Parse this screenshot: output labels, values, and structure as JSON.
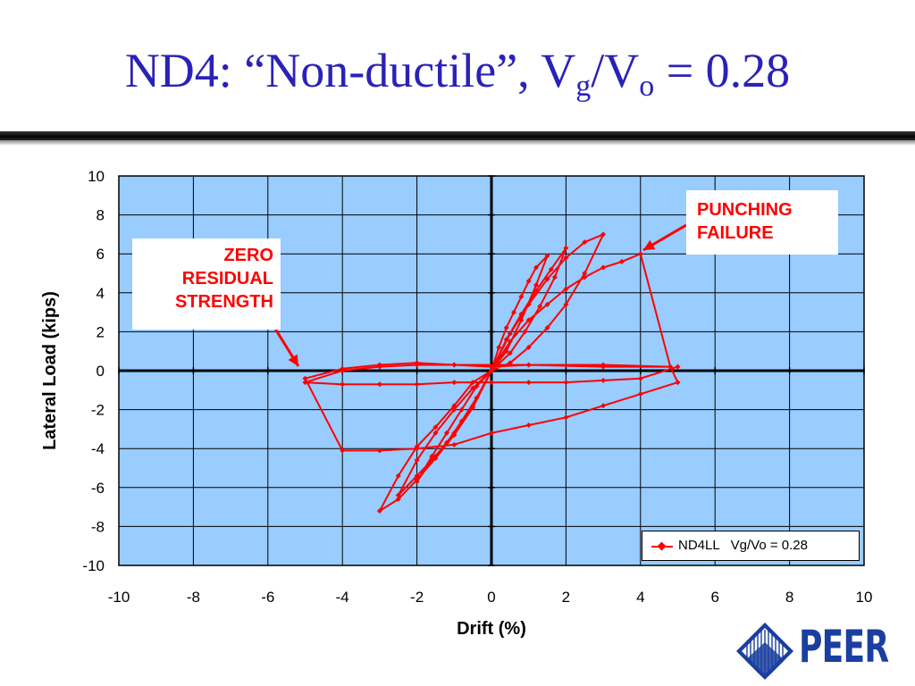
{
  "slide": {
    "title_main": "ND4:  “Non-ductile”, V",
    "title_sub_g": "g",
    "title_slash": "/V",
    "title_sub_o": "o",
    "title_end": " = 0.28"
  },
  "callouts": {
    "zero_residual": [
      "ZERO",
      "RESIDUAL",
      "STRENGTH"
    ],
    "punching_failure": [
      "PUNCHING",
      "FAILURE"
    ]
  },
  "logo": {
    "text": "PEER",
    "color": "#1a3fa0"
  },
  "colors": {
    "plot_bg": "#99ccff",
    "series": "#ff0000",
    "title": "#2a22b8"
  },
  "chart_data": {
    "type": "line",
    "xlabel": "Drift (%)",
    "ylabel": "Lateral Load (kips)",
    "xlim": [
      -10,
      10
    ],
    "ylim": [
      -10,
      10
    ],
    "xticks": [
      -10,
      -8,
      -6,
      -4,
      -2,
      0,
      2,
      4,
      6,
      8,
      10
    ],
    "yticks": [
      -10,
      -8,
      -6,
      -4,
      -2,
      0,
      2,
      4,
      6,
      8,
      10
    ],
    "grid": true,
    "legend_position": "bottom-right",
    "series": [
      {
        "name": "ND4LL   Vg/Vo = 0.28",
        "points": [
          [
            0,
            0
          ],
          [
            0.2,
            1.2
          ],
          [
            0.4,
            2.2
          ],
          [
            0.6,
            3.0
          ],
          [
            0.8,
            3.8
          ],
          [
            1.0,
            4.6
          ],
          [
            1.2,
            5.3
          ],
          [
            1.5,
            5.9
          ],
          [
            1.2,
            4.4
          ],
          [
            0.8,
            2.6
          ],
          [
            0.4,
            1.0
          ],
          [
            0,
            0
          ],
          [
            -0.4,
            -1.4
          ],
          [
            -0.8,
            -2.6
          ],
          [
            -1.2,
            -3.7
          ],
          [
            -1.6,
            -4.6
          ],
          [
            -2.0,
            -5.7
          ],
          [
            -1.6,
            -4.4
          ],
          [
            -1.2,
            -3.2
          ],
          [
            -0.8,
            -2.0
          ],
          [
            -0.4,
            -0.8
          ],
          [
            0,
            0
          ],
          [
            0.4,
            1.6
          ],
          [
            0.8,
            2.9
          ],
          [
            1.2,
            4.1
          ],
          [
            1.6,
            5.2
          ],
          [
            2.0,
            6.3
          ],
          [
            1.7,
            4.8
          ],
          [
            1.3,
            3.3
          ],
          [
            0.9,
            2.0
          ],
          [
            0.5,
            0.9
          ],
          [
            0,
            0
          ],
          [
            -0.5,
            -1.8
          ],
          [
            -1.0,
            -3.2
          ],
          [
            -1.5,
            -4.4
          ],
          [
            -2.0,
            -5.4
          ],
          [
            -2.5,
            -6.4
          ],
          [
            -2.0,
            -4.6
          ],
          [
            -1.5,
            -3.2
          ],
          [
            -1.0,
            -2.0
          ],
          [
            -0.5,
            -0.9
          ],
          [
            0,
            0
          ],
          [
            0.5,
            1.9
          ],
          [
            1.0,
            3.4
          ],
          [
            1.5,
            4.7
          ],
          [
            2.0,
            5.8
          ],
          [
            2.5,
            6.6
          ],
          [
            3.0,
            7.0
          ],
          [
            2.5,
            5.0
          ],
          [
            2.0,
            3.4
          ],
          [
            1.5,
            2.2
          ],
          [
            1.0,
            1.2
          ],
          [
            0.5,
            0.4
          ],
          [
            0,
            0
          ],
          [
            -0.5,
            -1.9
          ],
          [
            -1.0,
            -3.3
          ],
          [
            -1.5,
            -4.5
          ],
          [
            -2.0,
            -5.6
          ],
          [
            -2.5,
            -6.6
          ],
          [
            -3.0,
            -7.2
          ],
          [
            -2.5,
            -5.4
          ],
          [
            -2.0,
            -3.9
          ],
          [
            -1.5,
            -2.9
          ],
          [
            -1.0,
            -1.8
          ],
          [
            -0.5,
            -0.6
          ],
          [
            0,
            0
          ],
          [
            0.5,
            1.5
          ],
          [
            1.0,
            2.6
          ],
          [
            1.5,
            3.4
          ],
          [
            2.0,
            4.2
          ],
          [
            2.5,
            4.8
          ],
          [
            3.0,
            5.3
          ],
          [
            3.5,
            5.6
          ],
          [
            4.0,
            6.0
          ],
          [
            4.8,
            0.2
          ],
          [
            3.0,
            0.2
          ],
          [
            1.0,
            0.3
          ],
          [
            -1.0,
            0.3
          ],
          [
            -2.0,
            0.4
          ],
          [
            -3.0,
            0.3
          ],
          [
            -4.0,
            0.1
          ],
          [
            -5.0,
            -0.4
          ],
          [
            -4.0,
            -4.1
          ],
          [
            -3.0,
            -4.1
          ],
          [
            -2.0,
            -4.0
          ],
          [
            -1.0,
            -3.8
          ],
          [
            0,
            -3.2
          ],
          [
            1.0,
            -2.8
          ],
          [
            2.0,
            -2.4
          ],
          [
            3.0,
            -1.8
          ],
          [
            4.0,
            -1.2
          ],
          [
            5.0,
            -0.6
          ],
          [
            4.8,
            0.2
          ],
          [
            3.0,
            0.3
          ],
          [
            1.0,
            0.3
          ],
          [
            0,
            0.2
          ],
          [
            -1.0,
            0.3
          ],
          [
            -2.0,
            0.3
          ],
          [
            -3.0,
            0.2
          ],
          [
            -4.0,
            0.0
          ],
          [
            -5.0,
            -0.6
          ],
          [
            -4.0,
            -0.7
          ],
          [
            -3.0,
            -0.7
          ],
          [
            -2.0,
            -0.7
          ],
          [
            -1.0,
            -0.6
          ],
          [
            0,
            -0.6
          ],
          [
            1.0,
            -0.6
          ],
          [
            2.0,
            -0.6
          ],
          [
            3.0,
            -0.5
          ],
          [
            4.0,
            -0.4
          ],
          [
            5.0,
            0.2
          ]
        ]
      }
    ]
  }
}
